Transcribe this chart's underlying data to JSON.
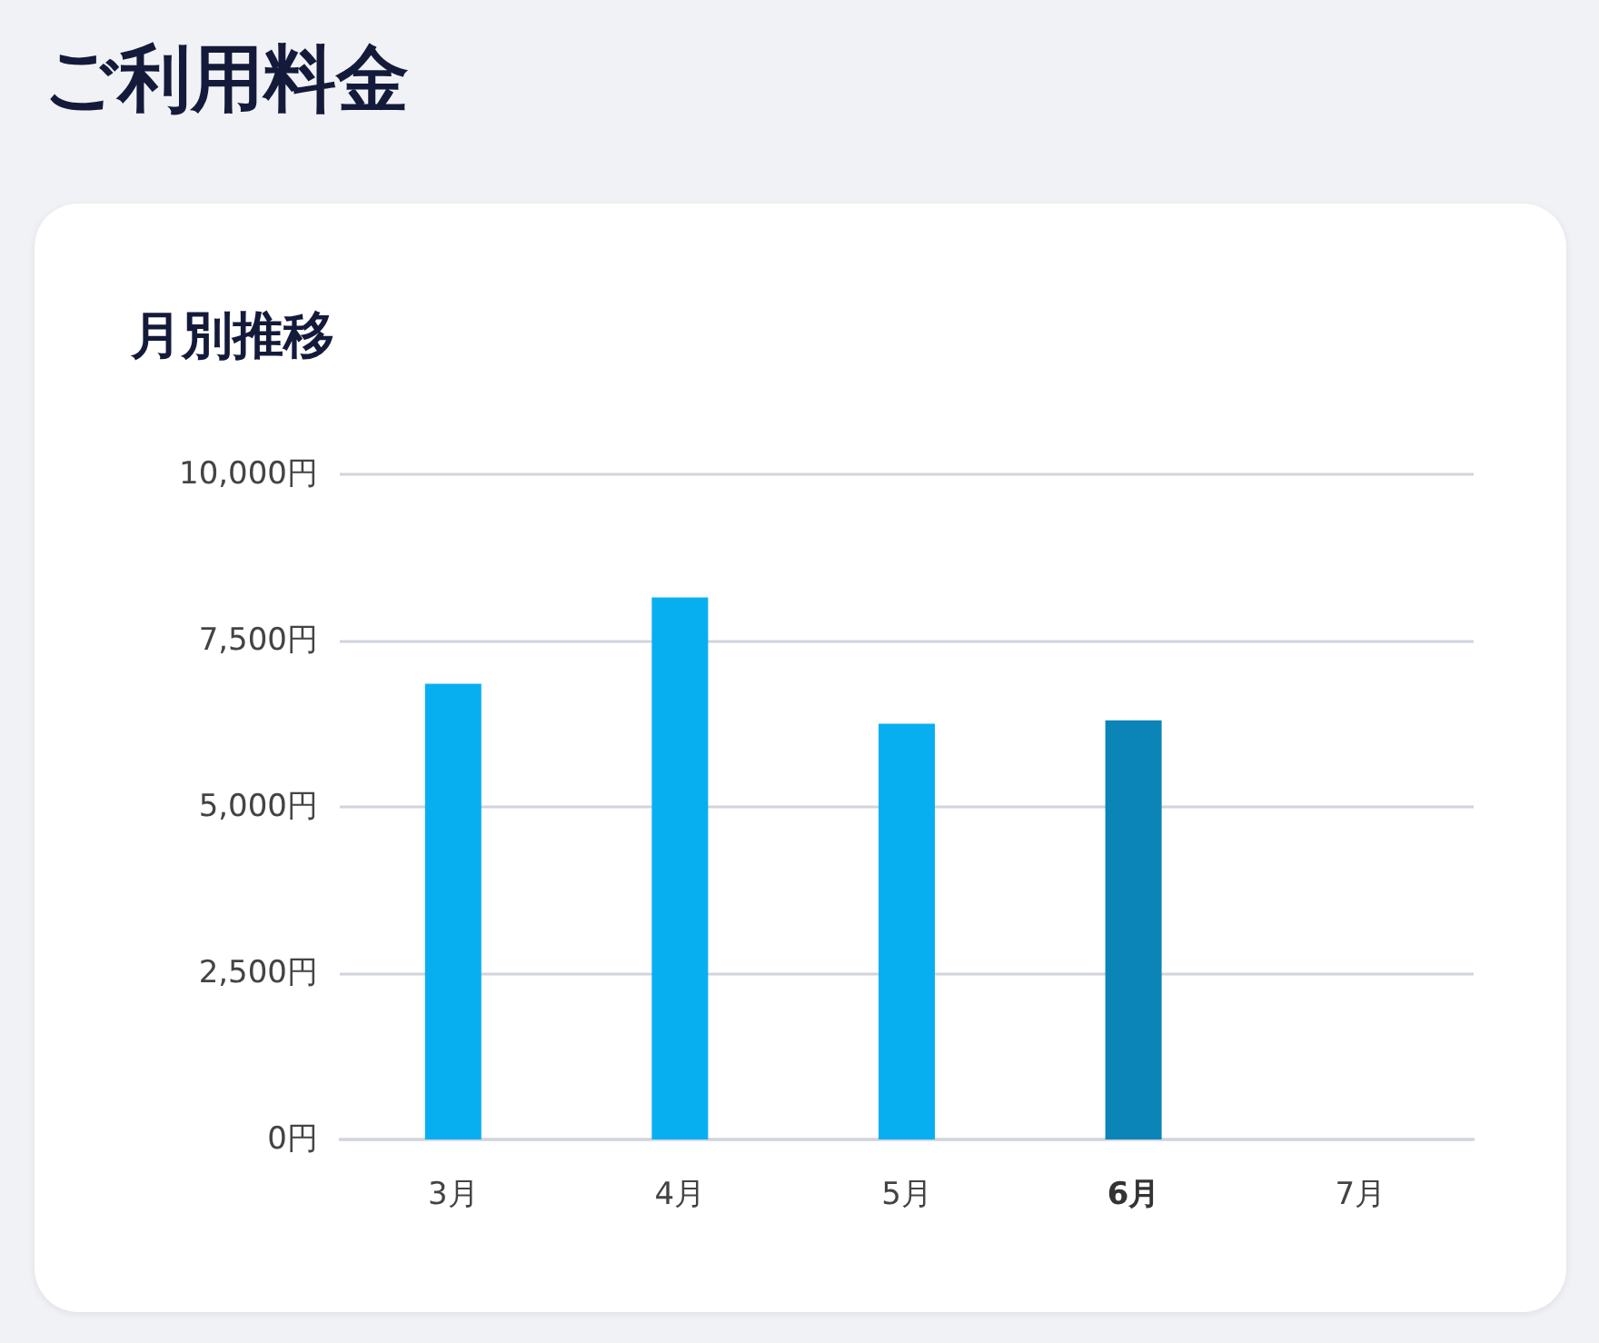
{
  "chart_data": {
    "type": "bar",
    "title": "ご利用料金",
    "subtitle": "月別推移",
    "categories": [
      "3月",
      "4月",
      "5月",
      "6月",
      "7月"
    ],
    "values": [
      6850,
      8150,
      6250,
      6300,
      null
    ],
    "colors": [
      "#08aff0",
      "#08aff0",
      "#08aff0",
      "#0b84b8",
      "#08aff0"
    ],
    "ylim": [
      0,
      10000
    ],
    "yticks": [
      {
        "value": 0,
        "label": "0円"
      },
      {
        "value": 2500,
        "label": "2,500円"
      },
      {
        "value": 5000,
        "label": "5,000円"
      },
      {
        "value": 7500,
        "label": "7,500円"
      },
      {
        "value": 10000,
        "label": "10,000円"
      }
    ],
    "grid": "y"
  }
}
